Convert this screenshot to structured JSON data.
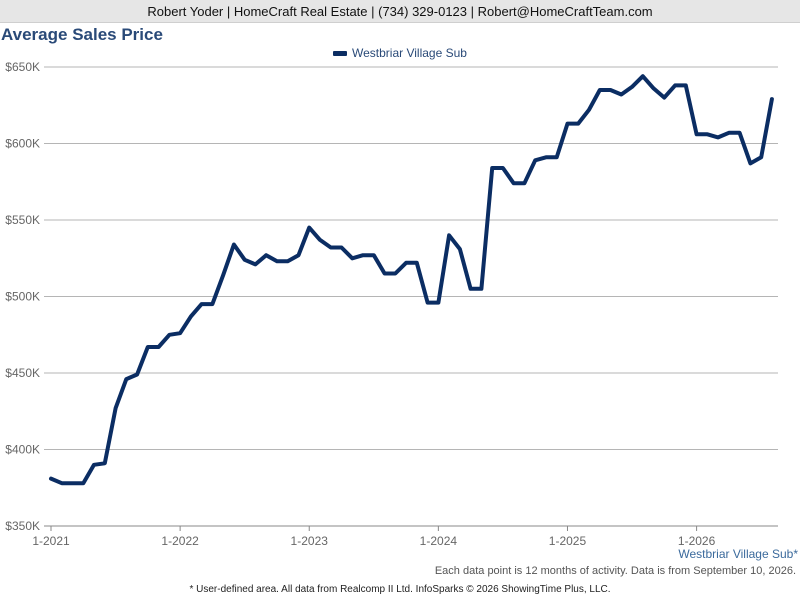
{
  "header": {
    "contact": "Robert Yoder | HomeCraft Real Estate | (734) 329-0123 | Robert@HomeCraftTeam.com"
  },
  "chart_data": {
    "type": "line",
    "title": "Average Sales Price",
    "ylim": [
      350000,
      650000
    ],
    "yticks": [
      {
        "value": 350000,
        "label": "$350K"
      },
      {
        "value": 400000,
        "label": "$400K"
      },
      {
        "value": 450000,
        "label": "$450K"
      },
      {
        "value": 500000,
        "label": "$500K"
      },
      {
        "value": 550000,
        "label": "$550K"
      },
      {
        "value": 600000,
        "label": "$600K"
      },
      {
        "value": 650000,
        "label": "$650K"
      }
    ],
    "xticks": [
      {
        "month": "2021-01",
        "label": "1-2021"
      },
      {
        "month": "2022-01",
        "label": "1-2022"
      },
      {
        "month": "2023-01",
        "label": "1-2023"
      },
      {
        "month": "2024-01",
        "label": "1-2024"
      },
      {
        "month": "2025-01",
        "label": "1-2025"
      },
      {
        "month": "2026-01",
        "label": "1-2026"
      }
    ],
    "grid": true,
    "legend_position": "top-center",
    "series": [
      {
        "name": "Westbriar Village Sub",
        "color": "#0b2d63",
        "points": [
          {
            "x": "2021-01",
            "y": 381000
          },
          {
            "x": "2021-02",
            "y": 378000
          },
          {
            "x": "2021-03",
            "y": 378000
          },
          {
            "x": "2021-04",
            "y": 378000
          },
          {
            "x": "2021-05",
            "y": 390000
          },
          {
            "x": "2021-06",
            "y": 391000
          },
          {
            "x": "2021-07",
            "y": 427000
          },
          {
            "x": "2021-08",
            "y": 446000
          },
          {
            "x": "2021-09",
            "y": 449000
          },
          {
            "x": "2021-10",
            "y": 467000
          },
          {
            "x": "2021-11",
            "y": 467000
          },
          {
            "x": "2021-12",
            "y": 475000
          },
          {
            "x": "2022-01",
            "y": 476000
          },
          {
            "x": "2022-02",
            "y": 487000
          },
          {
            "x": "2022-03",
            "y": 495000
          },
          {
            "x": "2022-04",
            "y": 495000
          },
          {
            "x": "2022-05",
            "y": 514000
          },
          {
            "x": "2022-06",
            "y": 534000
          },
          {
            "x": "2022-07",
            "y": 524000
          },
          {
            "x": "2022-08",
            "y": 521000
          },
          {
            "x": "2022-09",
            "y": 527000
          },
          {
            "x": "2022-10",
            "y": 523000
          },
          {
            "x": "2022-11",
            "y": 523000
          },
          {
            "x": "2022-12",
            "y": 527000
          },
          {
            "x": "2023-01",
            "y": 545000
          },
          {
            "x": "2023-02",
            "y": 537000
          },
          {
            "x": "2023-03",
            "y": 532000
          },
          {
            "x": "2023-04",
            "y": 532000
          },
          {
            "x": "2023-05",
            "y": 525000
          },
          {
            "x": "2023-06",
            "y": 527000
          },
          {
            "x": "2023-07",
            "y": 527000
          },
          {
            "x": "2023-08",
            "y": 515000
          },
          {
            "x": "2023-09",
            "y": 515000
          },
          {
            "x": "2023-10",
            "y": 522000
          },
          {
            "x": "2023-11",
            "y": 522000
          },
          {
            "x": "2023-12",
            "y": 496000
          },
          {
            "x": "2024-01",
            "y": 496000
          },
          {
            "x": "2024-02",
            "y": 540000
          },
          {
            "x": "2024-03",
            "y": 531000
          },
          {
            "x": "2024-04",
            "y": 505000
          },
          {
            "x": "2024-05",
            "y": 505000
          },
          {
            "x": "2024-06",
            "y": 584000
          },
          {
            "x": "2024-07",
            "y": 584000
          },
          {
            "x": "2024-08",
            "y": 574000
          },
          {
            "x": "2024-09",
            "y": 574000
          },
          {
            "x": "2024-10",
            "y": 589000
          },
          {
            "x": "2024-11",
            "y": 591000
          },
          {
            "x": "2024-12",
            "y": 591000
          },
          {
            "x": "2025-01",
            "y": 613000
          },
          {
            "x": "2025-02",
            "y": 613000
          },
          {
            "x": "2025-03",
            "y": 622000
          },
          {
            "x": "2025-04",
            "y": 635000
          },
          {
            "x": "2025-05",
            "y": 635000
          },
          {
            "x": "2025-06",
            "y": 632000
          },
          {
            "x": "2025-07",
            "y": 637000
          },
          {
            "x": "2025-08",
            "y": 644000
          },
          {
            "x": "2025-09",
            "y": 636000
          },
          {
            "x": "2025-10",
            "y": 630000
          },
          {
            "x": "2025-11",
            "y": 638000
          },
          {
            "x": "2025-12",
            "y": 638000
          },
          {
            "x": "2026-01",
            "y": 606000
          },
          {
            "x": "2026-02",
            "y": 606000
          },
          {
            "x": "2026-03",
            "y": 604000
          },
          {
            "x": "2026-04",
            "y": 607000
          },
          {
            "x": "2026-05",
            "y": 607000
          },
          {
            "x": "2026-06",
            "y": 587000
          },
          {
            "x": "2026-07",
            "y": 591000
          },
          {
            "x": "2026-08",
            "y": 629000
          }
        ]
      }
    ]
  },
  "area_label": "Westbriar Village Sub*",
  "note": "Each data point is 12 months of activity. Data is from September 10, 2026.",
  "footer": "* User-defined area. All data from Realcomp II Ltd. InfoSparks © 2026 ShowingTime Plus, LLC."
}
